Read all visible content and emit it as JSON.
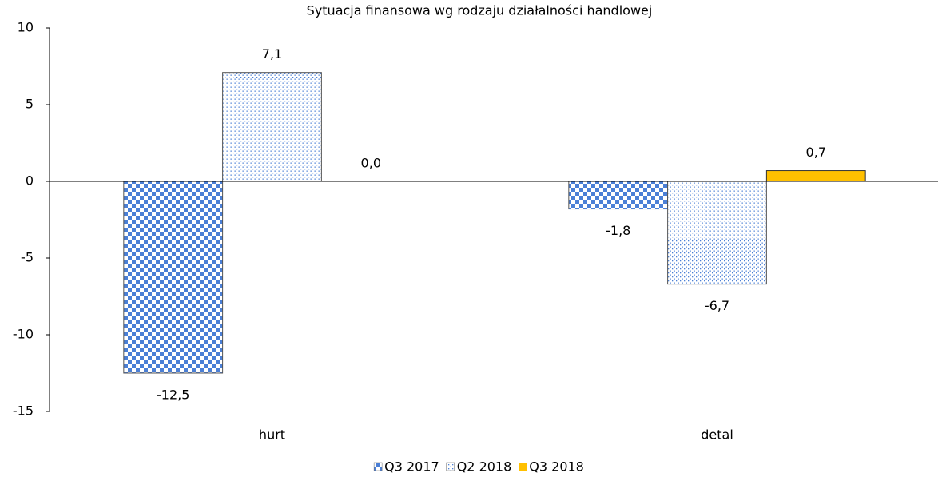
{
  "chart_data": {
    "type": "bar",
    "title": "Sytuacja finansowa wg rodzaju działalności handlowej",
    "categories": [
      "hurt",
      "detal"
    ],
    "series": [
      {
        "name": "Q3 2017",
        "color": "#4a7fd6",
        "pattern": "checker",
        "values": [
          -12.5,
          -1.8
        ],
        "value_labels": [
          "-12,5",
          "-1,8"
        ]
      },
      {
        "name": "Q2 2018",
        "color": "#4a7fd6",
        "pattern": "dots",
        "values": [
          7.1,
          -6.7
        ],
        "value_labels": [
          "7,1",
          "-6,7"
        ]
      },
      {
        "name": "Q3 2018",
        "color": "#ffc000",
        "pattern": "solid",
        "values": [
          0.0,
          0.7
        ],
        "value_labels": [
          "0,0",
          "0,7"
        ]
      }
    ],
    "ylim": [
      -15,
      10
    ],
    "yticks": [
      10,
      5,
      0,
      -5,
      -10,
      -15
    ],
    "legend": "bottom"
  }
}
